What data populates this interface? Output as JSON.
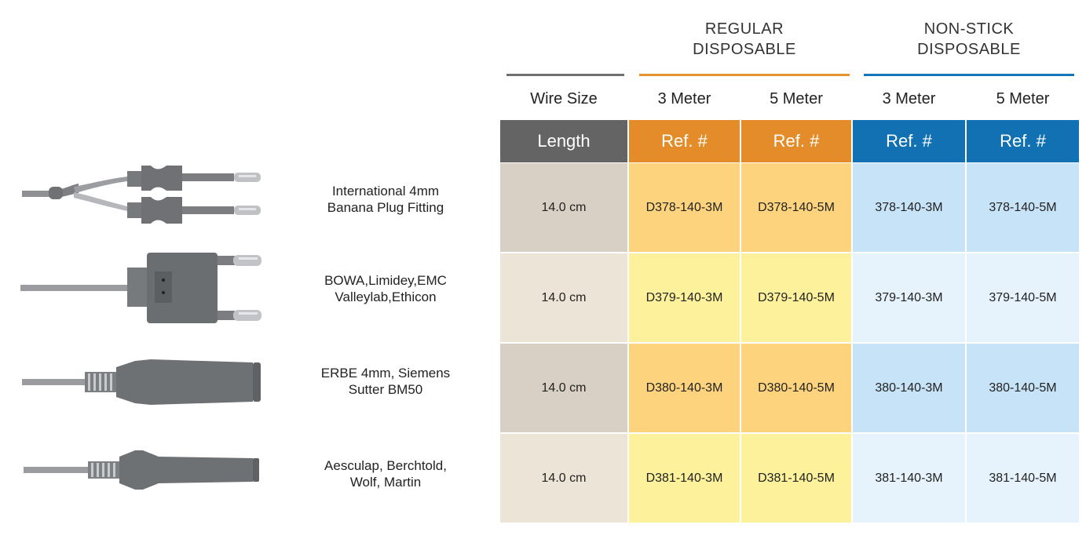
{
  "groups": [
    {
      "title": "REGULAR\nDISPOSABLE",
      "color": "#e5932d"
    },
    {
      "title": "NON-STICK\nDISPOSABLE",
      "color": "#1576bb"
    }
  ],
  "subheaders": {
    "wire_size": "Wire Size",
    "reg_3m": "3 Meter",
    "reg_5m": "5 Meter",
    "ns_3m": "3 Meter",
    "ns_5m": "5 Meter"
  },
  "header_row": {
    "length": "Length",
    "ref_1": "Ref. #",
    "ref_2": "Ref. #",
    "ref_3": "Ref. #",
    "ref_4": "Ref. #"
  },
  "rows": [
    {
      "description": "International 4mm\nBanana Plug Fitting",
      "length": "14.0 cm",
      "reg_3m": "D378-140-3M",
      "reg_5m": "D378-140-5M",
      "ns_3m": "378-140-3M",
      "ns_5m": "378-140-5M",
      "image": "dual-banana-plug-icon"
    },
    {
      "description": "BOWA,Limidey,EMC\nValleylab,Ethicon",
      "length": "14.0 cm",
      "reg_3m": "D379-140-3M",
      "reg_5m": "D379-140-5M",
      "ns_3m": "379-140-3M",
      "ns_5m": "379-140-5M",
      "image": "twin-pin-connector-icon"
    },
    {
      "description": "ERBE 4mm, Siemens\nSutter BM50",
      "length": "14.0 cm",
      "reg_3m": "D380-140-3M",
      "reg_5m": "D380-140-5M",
      "ns_3m": "380-140-3M",
      "ns_5m": "380-140-5M",
      "image": "erbe-connector-icon"
    },
    {
      "description": "Aesculap, Berchtold,\nWolf, Martin",
      "length": "14.0 cm",
      "reg_3m": "D381-140-3M",
      "reg_5m": "D381-140-5M",
      "ns_3m": "381-140-3M",
      "ns_5m": "381-140-5M",
      "image": "aesculap-connector-icon"
    }
  ],
  "colors": {
    "header_gray": "#646464",
    "header_orange": "#e38c29",
    "header_blue": "#1171b3",
    "length_dark": "#d8d0c4",
    "length_light": "#ece4d6",
    "orange_dark": "#fdd47d",
    "orange_light": "#fdf29b",
    "blue_dark": "#c7e3f7",
    "blue_light": "#e6f3fc",
    "wire_line": "#6e7072"
  }
}
